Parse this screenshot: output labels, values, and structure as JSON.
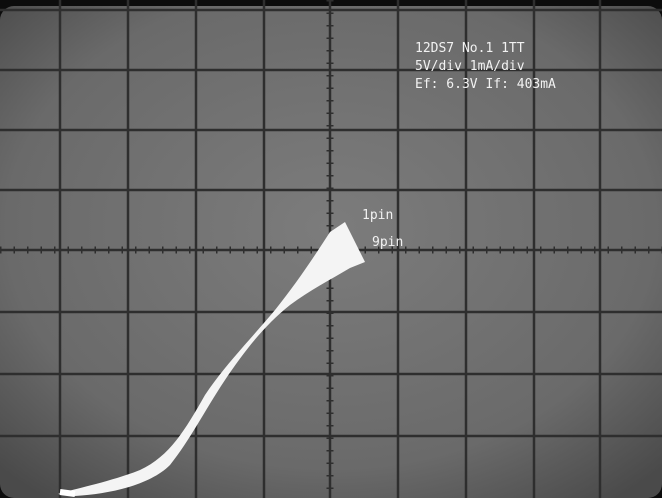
{
  "annotation": {
    "lines": [
      "12DS7 No.1 1TT",
      "5V/div 1mA/div",
      "Ef: 6.3V If: 403mA"
    ]
  },
  "trace_labels": {
    "pin1": "1pin",
    "pin9": "9pin"
  }
}
